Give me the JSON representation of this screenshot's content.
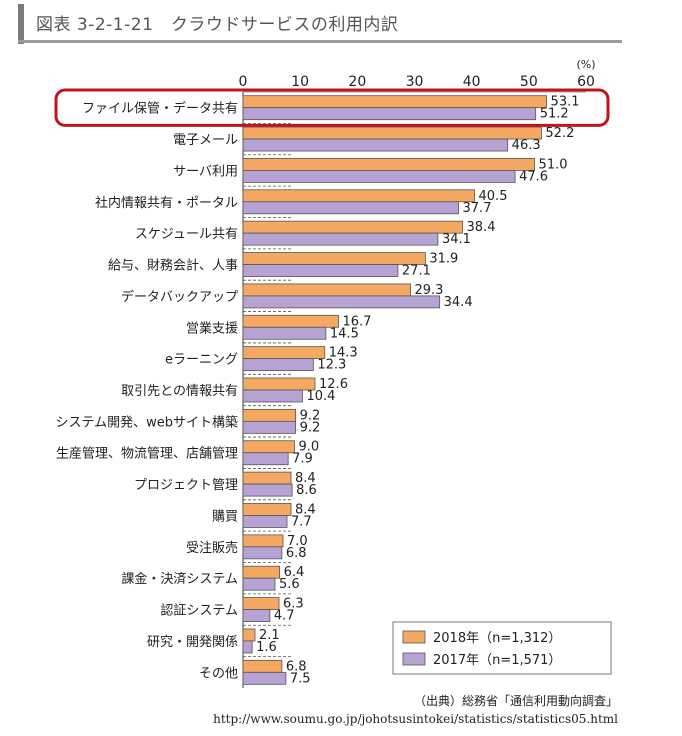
{
  "header": {
    "title": "図表 3-2-1-21　クラウドサービスの利用内訳"
  },
  "source": {
    "line1": "（出典）総務省「通信利用動向調査」",
    "line2": "http://www.soumu.go.jp/johotsusintokei/statistics/statistics05.html"
  },
  "chart_data": {
    "type": "bar",
    "orientation": "horizontal",
    "unit_label": "(%)",
    "xlim": [
      0,
      60
    ],
    "xticks": [
      0,
      10,
      20,
      30,
      40,
      50,
      60
    ],
    "categories": [
      "ファイル保管・データ共有",
      "電子メール",
      "サーバ利用",
      "社内情報共有・ポータル",
      "スケジュール共有",
      "給与、財務会計、人事",
      "データバックアップ",
      "営業支援",
      "eラーニング",
      "取引先との情報共有",
      "システム開発、webサイト構築",
      "生産管理、物流管理、店舗管理",
      "プロジェクト管理",
      "購買",
      "受注販売",
      "課金・決済システム",
      "認証システム",
      "研究・開発関係",
      "その他"
    ],
    "series": [
      {
        "name": "2018年（n=1,312）",
        "color": "#f5a862",
        "values": [
          53.1,
          52.2,
          51.0,
          40.5,
          38.4,
          31.9,
          29.3,
          16.7,
          14.3,
          12.6,
          9.2,
          9.0,
          8.4,
          8.4,
          7.0,
          6.4,
          6.3,
          2.1,
          6.8
        ]
      },
      {
        "name": "2017年（n=1,571）",
        "color": "#b7a3d3",
        "values": [
          51.2,
          46.3,
          47.6,
          37.7,
          34.1,
          27.1,
          34.4,
          14.5,
          12.3,
          10.4,
          9.2,
          7.9,
          8.6,
          7.7,
          6.8,
          5.6,
          4.7,
          1.6,
          7.5
        ]
      }
    ],
    "highlight_category": "ファイル保管・データ共有",
    "highlight_color": "#c0141c",
    "legend_position": "bottom-right"
  }
}
